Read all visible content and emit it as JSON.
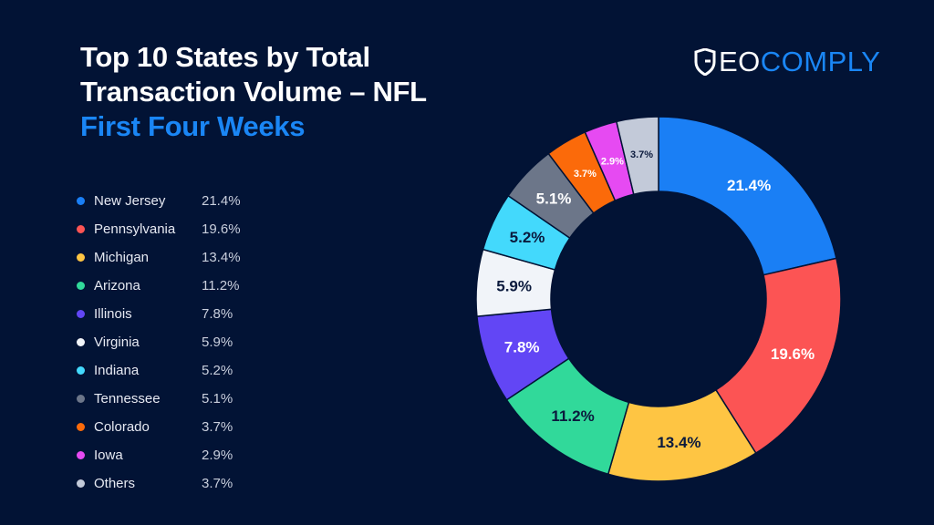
{
  "title": {
    "line1": "Top 10 States by Total",
    "line2": "Transaction Volume – NFL",
    "subtitle": "First Four Weeks"
  },
  "logo": {
    "text_white": "EO",
    "text_blue": "COMPLY",
    "full": "GEOCOMPLY"
  },
  "colors": {
    "background": "#021335",
    "accent": "#1a86f5"
  },
  "chart_data": {
    "type": "pie",
    "variant": "donut",
    "start": "top, clockwise",
    "legend_position": "left",
    "slices": [
      {
        "label": "New Jersey",
        "value": 21.4,
        "display": "21.4%",
        "color": "#1a7ff5",
        "text_color": "#ffffff"
      },
      {
        "label": "Pennsylvania",
        "value": 19.6,
        "display": "19.6%",
        "color": "#fc5454",
        "text_color": "#ffffff"
      },
      {
        "label": "Michigan",
        "value": 13.4,
        "display": "13.4%",
        "color": "#fec543",
        "text_color": "#0b1a3d"
      },
      {
        "label": "Arizona",
        "value": 11.2,
        "display": "11.2%",
        "color": "#31d99a",
        "text_color": "#0b1a3d"
      },
      {
        "label": "Illinois",
        "value": 7.8,
        "display": "7.8%",
        "color": "#6246f5",
        "text_color": "#ffffff"
      },
      {
        "label": "Virginia",
        "value": 5.9,
        "display": "5.9%",
        "color": "#f1f4f9",
        "text_color": "#0b1a3d"
      },
      {
        "label": "Indiana",
        "value": 5.2,
        "display": "5.2%",
        "color": "#43d9fc",
        "text_color": "#0b1a3d"
      },
      {
        "label": "Tennessee",
        "value": 5.1,
        "display": "5.1%",
        "color": "#6c7689",
        "text_color": "#ffffff"
      },
      {
        "label": "Colorado",
        "value": 3.7,
        "display": "3.7%",
        "color": "#fb6a0a",
        "text_color": "#ffffff"
      },
      {
        "label": "Iowa",
        "value": 2.9,
        "display": "2.9%",
        "color": "#e64af2",
        "text_color": "#ffffff"
      },
      {
        "label": "Others",
        "value": 3.7,
        "display": "3.7%",
        "color": "#c3cad9",
        "text_color": "#0b1a3d"
      }
    ]
  }
}
